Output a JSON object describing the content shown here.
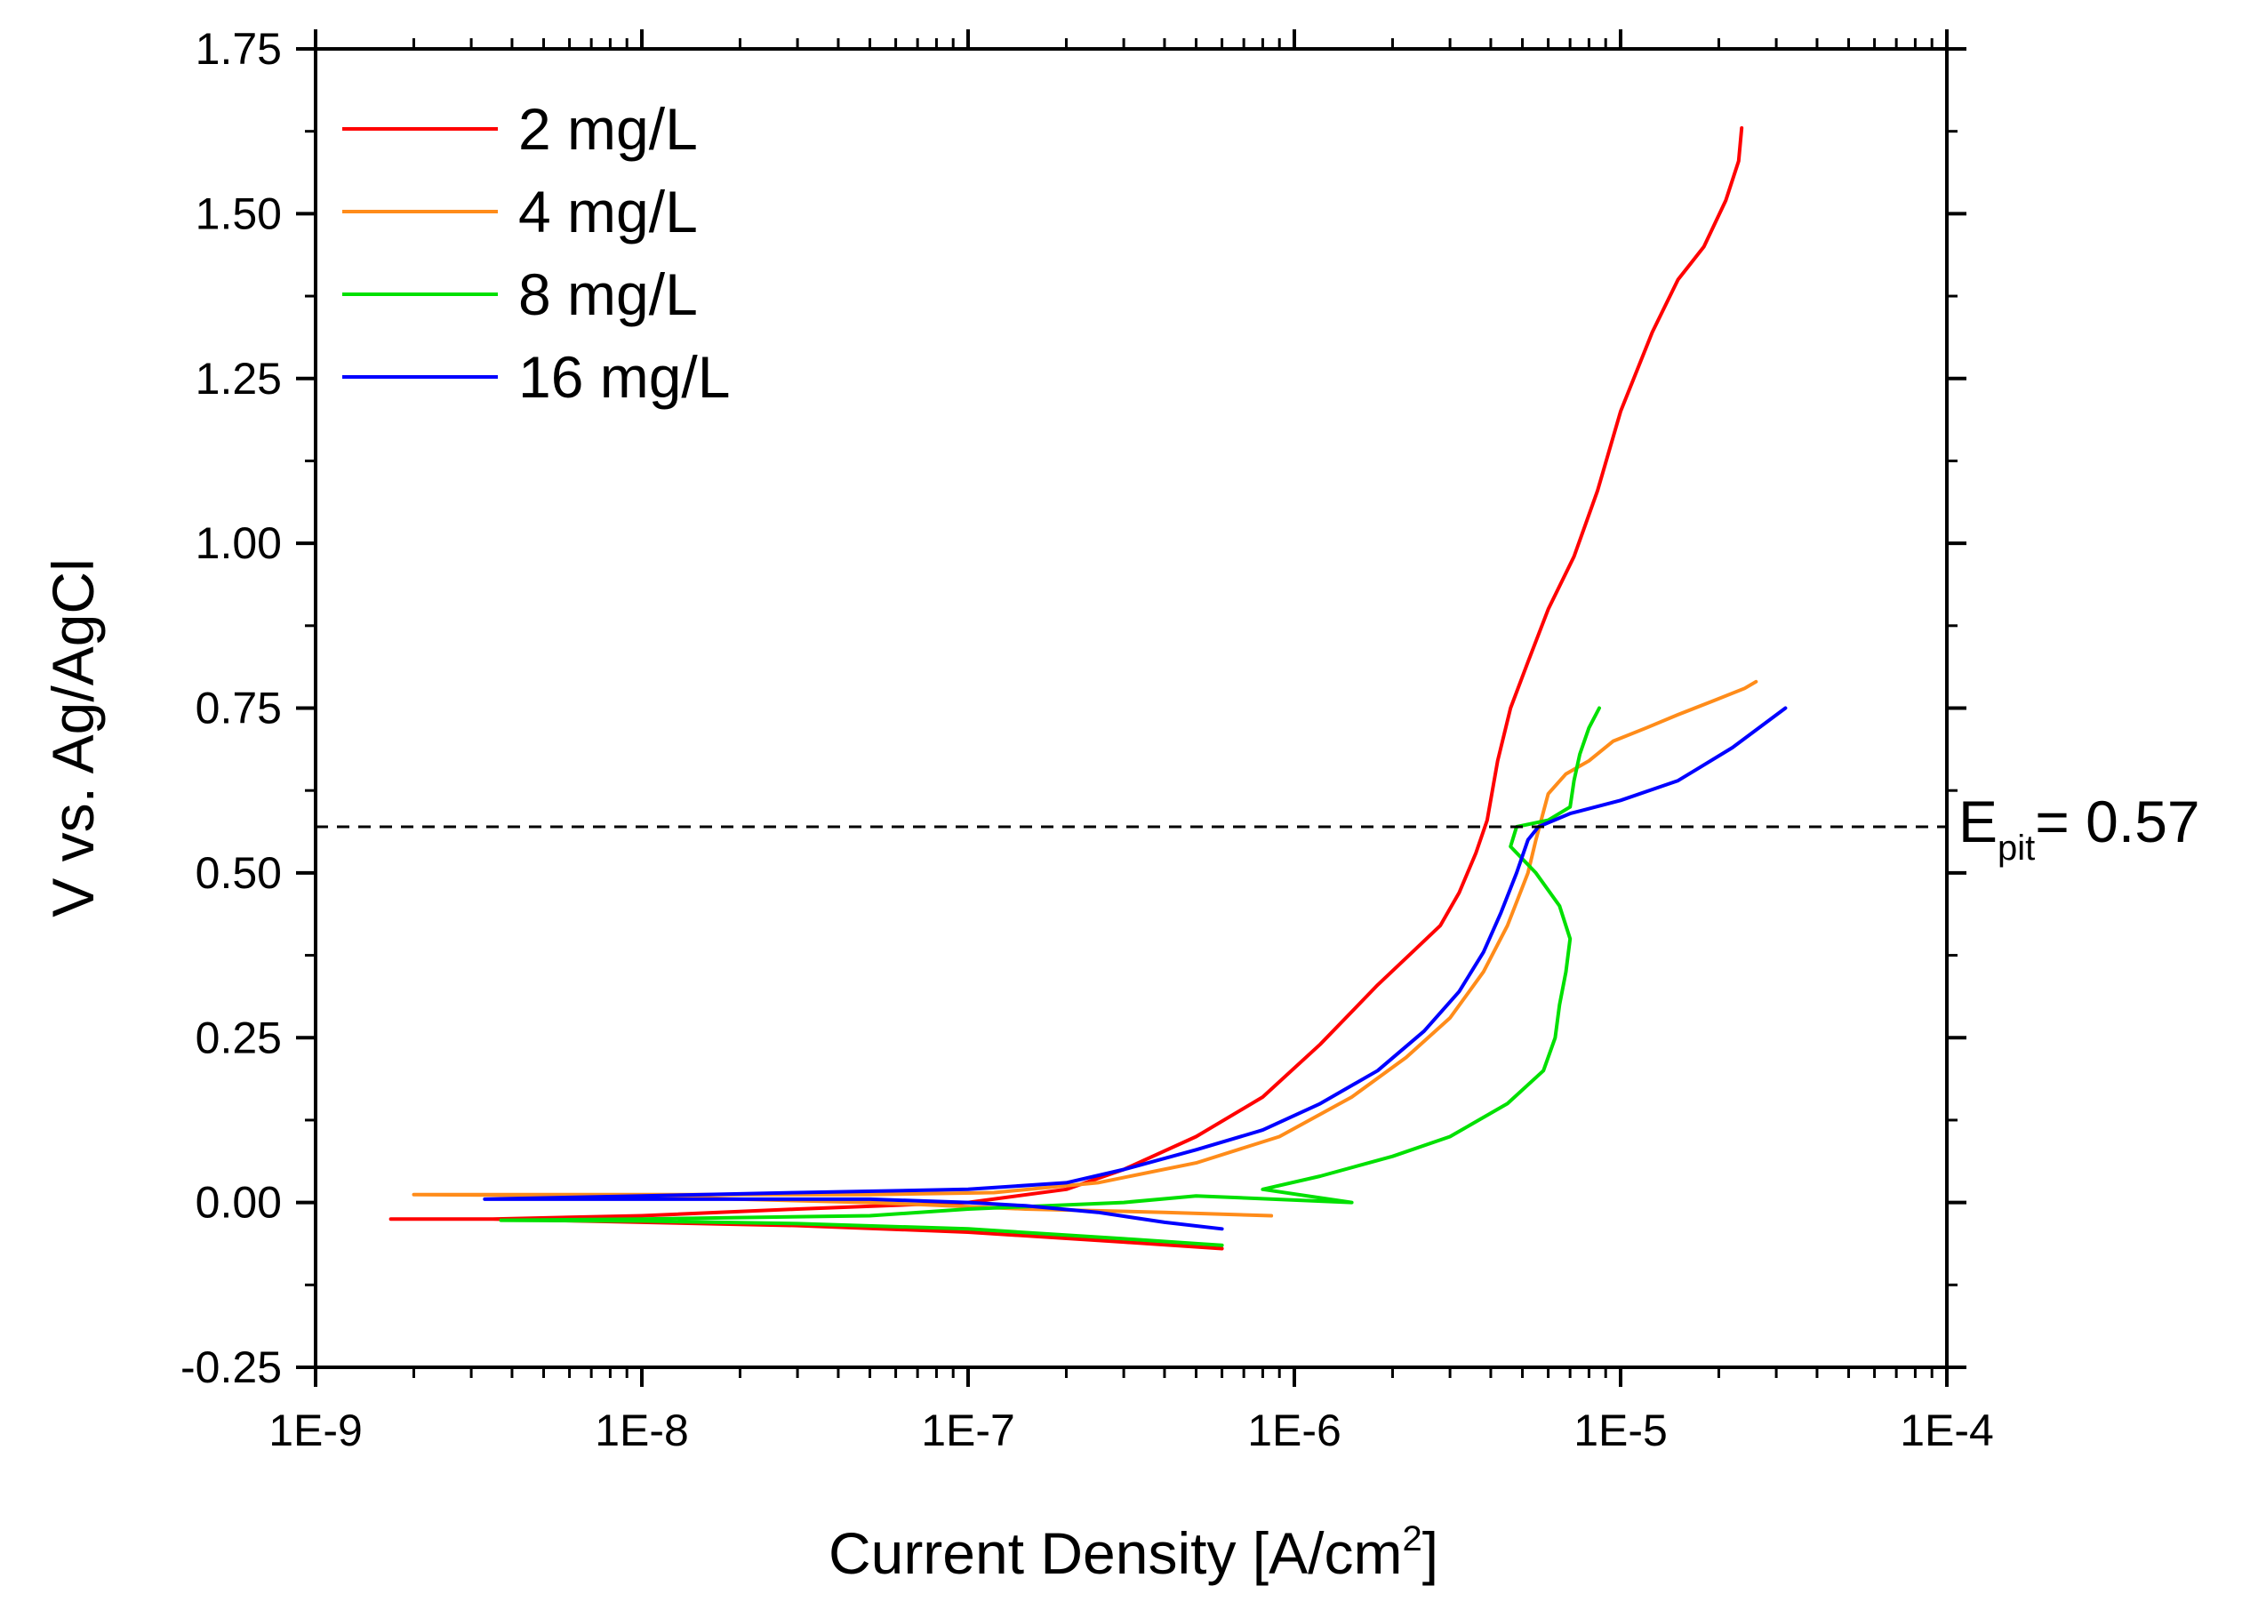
{
  "chart_data": {
    "type": "line",
    "xlabel": "Current Density [A/cm",
    "xlabel_sup": "2",
    "xlabel_suffix": "]",
    "ylabel": "V vs. Ag/AgCl",
    "x_scale": "log",
    "xlim": [
      1e-09,
      0.0001
    ],
    "ylim": [
      -0.25,
      1.75
    ],
    "x_ticks": [
      1e-09,
      1e-08,
      1e-07,
      1e-06,
      1e-05,
      0.0001
    ],
    "x_tick_labels": [
      "1E-9",
      "1E-8",
      "1E-7",
      "1E-6",
      "1E-5",
      "1E-4"
    ],
    "y_ticks": [
      -0.25,
      0,
      0.25,
      0.5,
      0.75,
      1.0,
      1.25,
      1.5,
      1.75
    ],
    "y_tick_labels": [
      "-0.25",
      "0.00",
      "0.25",
      "0.50",
      "0.75",
      "1.00",
      "1.25",
      "1.50",
      "1.75"
    ],
    "grid": false,
    "legend_position": "top-left",
    "reference_line": {
      "y": 0.57,
      "style": "dashed",
      "color": "#000000"
    },
    "annotation": {
      "prefix": "E",
      "sub": "pit",
      "text": "= 0.57",
      "y": 0.57
    },
    "series": [
      {
        "name": "2 mg/L",
        "color": "#ff0000",
        "x": [
          6e-07,
          3e-07,
          1e-07,
          3e-08,
          1e-08,
          3.5e-09,
          1.7e-09,
          3.5e-09,
          1e-08,
          3e-08,
          1e-07,
          2e-07,
          3e-07,
          5e-07,
          8e-07,
          1.2e-06,
          1.8e-06,
          2.3e-06,
          2.8e-06,
          3.2e-06,
          3.6e-06,
          3.9e-06,
          4.2e-06,
          4.6e-06,
          5.2e-06,
          6e-06,
          7.2e-06,
          8.5e-06,
          1e-05,
          1.25e-05,
          1.5e-05,
          1.8e-05,
          2.1e-05,
          2.3e-05,
          2.35e-05
        ],
        "y": [
          -0.07,
          -0.06,
          -0.045,
          -0.035,
          -0.03,
          -0.025,
          -0.025,
          -0.025,
          -0.02,
          -0.01,
          0.0,
          0.02,
          0.05,
          0.1,
          0.16,
          0.24,
          0.33,
          0.38,
          0.42,
          0.47,
          0.53,
          0.58,
          0.67,
          0.75,
          0.82,
          0.9,
          0.98,
          1.08,
          1.2,
          1.32,
          1.4,
          1.45,
          1.52,
          1.58,
          1.63
        ]
      },
      {
        "name": "4 mg/L",
        "color": "#ff8c1a",
        "x": [
          8.5e-07,
          4e-07,
          1.5e-07,
          5e-08,
          2e-08,
          1e-08,
          2e-09,
          1e-08,
          5e-08,
          1.2e-07,
          2.5e-07,
          5e-07,
          9e-07,
          1.5e-06,
          2.2e-06,
          3e-06,
          3.8e-06,
          4.5e-06,
          5.2e-06,
          5.5e-06,
          6e-06,
          6.8e-06,
          8e-06,
          9.5e-06,
          1.2e-05,
          1.5e-05,
          1.9e-05,
          2.4e-05,
          2.6e-05
        ],
        "y": [
          -0.02,
          -0.015,
          -0.01,
          0.0,
          0.005,
          0.01,
          0.012,
          0.012,
          0.012,
          0.015,
          0.03,
          0.06,
          0.1,
          0.16,
          0.22,
          0.28,
          0.35,
          0.42,
          0.5,
          0.55,
          0.62,
          0.65,
          0.67,
          0.7,
          0.72,
          0.74,
          0.76,
          0.78,
          0.79
        ]
      },
      {
        "name": "8 mg/L",
        "color": "#00e000",
        "x": [
          6e-07,
          3e-07,
          1e-07,
          3e-08,
          1e-08,
          3.7e-09,
          1e-08,
          5e-08,
          1e-07,
          3e-07,
          5e-07,
          1.5e-06,
          8e-07,
          1.2e-06,
          2e-06,
          3e-06,
          4.5e-06,
          5.8e-06,
          6.3e-06,
          6.5e-06,
          6.8e-06,
          7e-06,
          6.5e-06,
          5.5e-06,
          4.6e-06,
          4.8e-06,
          6e-06,
          7e-06,
          7.2e-06,
          7.5e-06,
          8e-06,
          8.6e-06
        ],
        "y": [
          -0.065,
          -0.055,
          -0.04,
          -0.032,
          -0.028,
          -0.027,
          -0.025,
          -0.02,
          -0.01,
          0.0,
          0.01,
          0.0,
          0.02,
          0.04,
          0.07,
          0.1,
          0.15,
          0.2,
          0.25,
          0.3,
          0.35,
          0.4,
          0.45,
          0.5,
          0.54,
          0.57,
          0.58,
          0.6,
          0.64,
          0.68,
          0.72,
          0.75
        ]
      },
      {
        "name": "16 mg/L",
        "color": "#0000ff",
        "x": [
          6e-07,
          4e-07,
          2.5e-07,
          1.5e-07,
          1e-07,
          5e-08,
          1e-08,
          3.3e-09,
          1e-08,
          3e-08,
          1e-07,
          2e-07,
          3e-07,
          5e-07,
          8e-07,
          1.2e-06,
          1.8e-06,
          2.5e-06,
          3.2e-06,
          3.8e-06,
          4.3e-06,
          4.8e-06,
          5.2e-06,
          5.6e-06,
          7e-06,
          1e-05,
          1.5e-05,
          2.2e-05,
          3.2e-05
        ],
        "y": [
          -0.04,
          -0.03,
          -0.015,
          -0.005,
          0.0,
          0.005,
          0.005,
          0.005,
          0.01,
          0.015,
          0.02,
          0.03,
          0.05,
          0.08,
          0.11,
          0.15,
          0.2,
          0.26,
          0.32,
          0.38,
          0.44,
          0.5,
          0.55,
          0.57,
          0.59,
          0.61,
          0.64,
          0.69,
          0.75
        ]
      }
    ]
  }
}
